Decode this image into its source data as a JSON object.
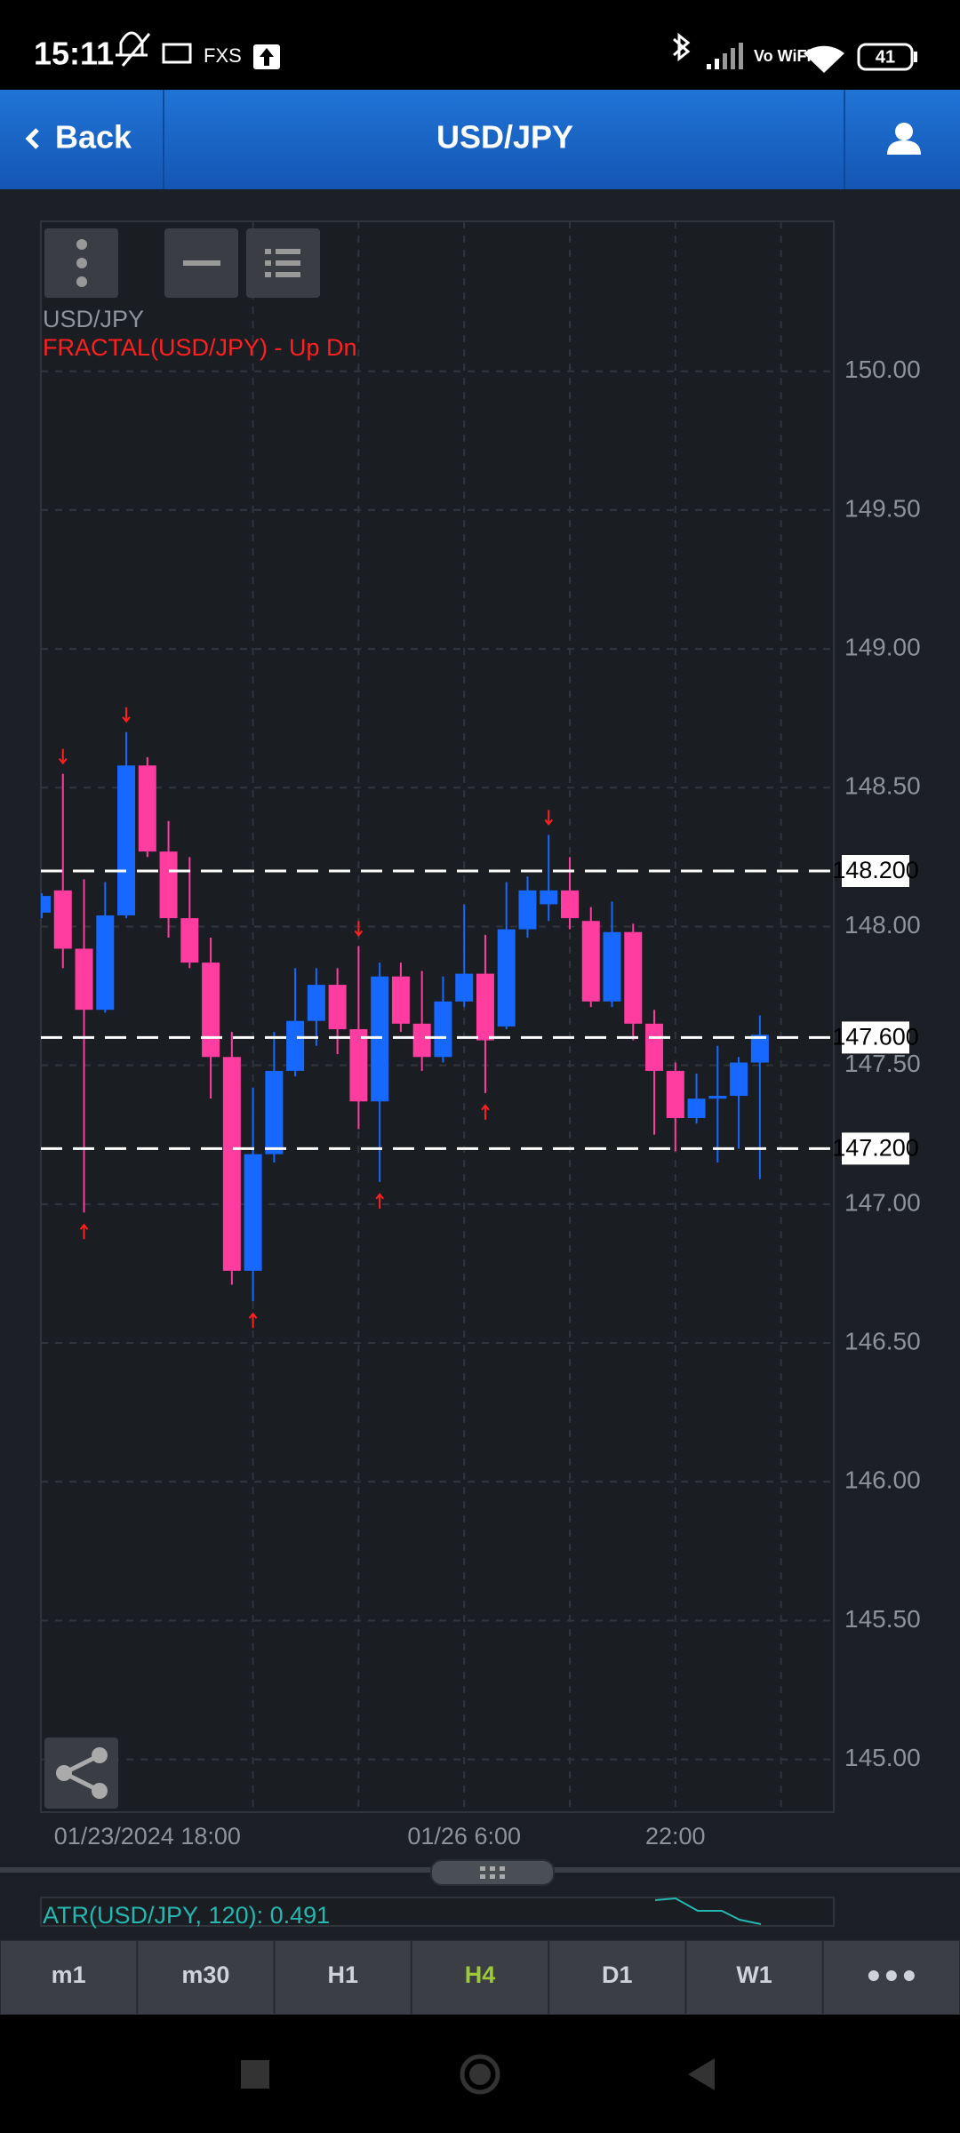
{
  "status_bar": {
    "time": "15:11",
    "carrier": "FXS",
    "wifi": "Vo WiFi",
    "battery": "41"
  },
  "header": {
    "back": "Back",
    "title": "USD/JPY"
  },
  "chart_data": {
    "type": "candlestick",
    "symbol": "USD/JPY",
    "categories": [
      null,
      null,
      null,
      null,
      null,
      "01/23/2024 18:00",
      null,
      null,
      null,
      null,
      null,
      null,
      null,
      null,
      null,
      null,
      null,
      null,
      null,
      null,
      "01/26 6:00",
      null,
      null,
      null,
      null,
      null,
      null,
      null,
      null,
      null,
      "22:00",
      null,
      null,
      null,
      null
    ],
    "open": [
      148.05,
      148.13,
      147.92,
      147.7,
      148.04,
      148.58,
      148.27,
      148.03,
      147.87,
      147.53,
      146.76,
      147.18,
      147.48,
      147.66,
      147.79,
      147.63,
      147.37,
      147.82,
      147.65,
      147.53,
      147.73,
      147.83,
      147.64,
      147.99,
      148.08,
      148.13,
      148.02,
      147.73,
      147.98,
      147.65,
      147.48,
      147.31,
      147.38,
      147.39,
      147.51
    ],
    "close": [
      148.11,
      147.92,
      147.7,
      148.04,
      148.58,
      148.27,
      148.03,
      147.87,
      147.53,
      146.76,
      147.18,
      147.48,
      147.66,
      147.79,
      147.63,
      147.37,
      147.82,
      147.65,
      147.53,
      147.73,
      147.83,
      147.59,
      147.99,
      148.13,
      148.13,
      148.03,
      147.73,
      147.98,
      147.65,
      147.48,
      147.31,
      147.38,
      147.39,
      147.51,
      147.61
    ],
    "high": [
      148.12,
      148.55,
      148.17,
      148.16,
      148.7,
      148.61,
      148.38,
      148.25,
      147.96,
      147.62,
      147.42,
      147.62,
      147.85,
      147.85,
      147.85,
      147.93,
      147.87,
      147.87,
      147.84,
      147.82,
      148.08,
      147.97,
      148.16,
      148.18,
      148.33,
      148.25,
      148.07,
      148.09,
      148.01,
      147.7,
      147.51,
      147.47,
      147.57,
      147.53,
      147.68
    ],
    "low": [
      148.03,
      147.85,
      146.97,
      147.69,
      148.03,
      148.25,
      147.96,
      147.85,
      147.38,
      146.71,
      146.65,
      147.15,
      147.46,
      147.57,
      147.54,
      147.27,
      147.08,
      147.62,
      147.48,
      147.51,
      147.71,
      147.4,
      147.63,
      147.96,
      148.02,
      147.99,
      147.71,
      147.71,
      147.59,
      147.25,
      147.19,
      147.29,
      147.15,
      147.2,
      147.09
    ],
    "up_color": "#1668ff",
    "down_color": "#ff3ca0",
    "fractals": {
      "label": "FRACTAL(USD/JPY) - Up Dn",
      "color": "#ff2020",
      "up": [
        null,
        null,
        146.97,
        null,
        null,
        null,
        null,
        null,
        null,
        null,
        146.65,
        null,
        null,
        null,
        null,
        null,
        147.08,
        null,
        null,
        null,
        null,
        147.4,
        null,
        null,
        null,
        null,
        null,
        null,
        null,
        null,
        null,
        null,
        null,
        null,
        null
      ],
      "down": [
        null,
        148.55,
        null,
        null,
        148.7,
        null,
        null,
        null,
        null,
        null,
        null,
        null,
        null,
        null,
        null,
        147.93,
        null,
        null,
        null,
        null,
        null,
        null,
        null,
        null,
        148.33,
        null,
        null,
        null,
        null,
        null,
        null,
        null,
        null,
        null,
        null
      ]
    },
    "levels": [
      {
        "value": 148.2,
        "label": "148.200"
      },
      {
        "value": 147.6,
        "label": "147.600"
      },
      {
        "value": 147.2,
        "label": "147.200"
      }
    ],
    "ylim": [
      144.81,
      150.54
    ],
    "yticks": [
      {
        "value": 145,
        "label": "145.00"
      },
      {
        "value": 145.5,
        "label": "145.50"
      },
      {
        "value": 146,
        "label": "146.00"
      },
      {
        "value": 146.5,
        "label": "146.50"
      },
      {
        "value": 147,
        "label": "147.00"
      },
      {
        "value": 147.5,
        "label": "147.50"
      },
      {
        "value": 148,
        "label": "148.00"
      },
      {
        "value": 148.5,
        "label": "148.50"
      },
      {
        "value": 149,
        "label": "149.00"
      },
      {
        "value": 149.5,
        "label": "149.50"
      },
      {
        "value": 150,
        "label": "150.00"
      }
    ],
    "grid": true
  },
  "indicator_panel": {
    "label": "ATR(USD/JPY, 120): 0.491"
  },
  "timeframes": {
    "items": [
      "m1",
      "m30",
      "H1",
      "H4",
      "D1",
      "W1"
    ],
    "selected": "H4"
  }
}
